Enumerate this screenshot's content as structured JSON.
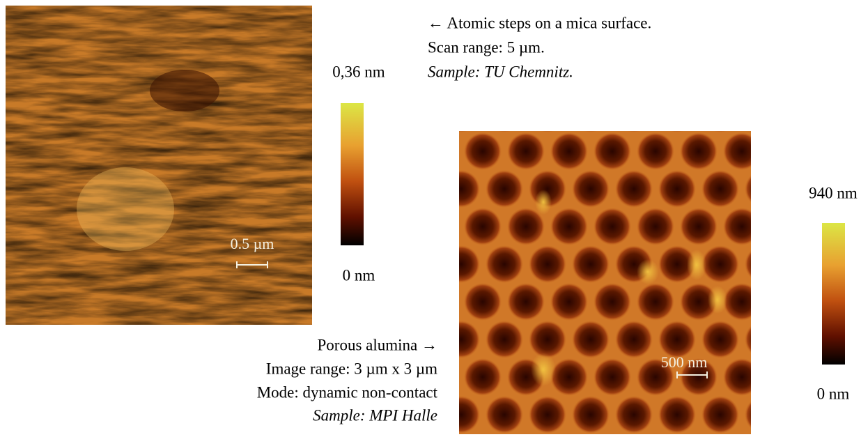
{
  "mica": {
    "caption": [
      "← Atomic steps on a mica surface.",
      "Scan range: 5 µm.",
      "Sample: TU Chemnitz."
    ],
    "scale_bar": "0.5 µm",
    "colorbar_max": "0,36 nm",
    "colorbar_min": "0 nm"
  },
  "alumina": {
    "caption": [
      "Porous alumina →",
      "Image range: 3 µm x 3 µm",
      "Mode: dynamic non-contact",
      "Sample: MPI Halle"
    ],
    "scale_bar": "500 nm",
    "colorbar_max": "940 nm",
    "colorbar_min": "0 nm"
  }
}
